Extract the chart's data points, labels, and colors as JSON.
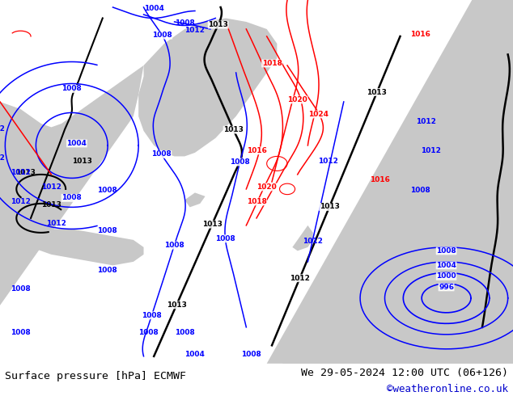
{
  "title_left": "Surface pressure [hPa] ECMWF",
  "title_right": "We 29-05-2024 12:00 UTC (06+126)",
  "copyright": "©weatheronline.co.uk",
  "sea_color": [
    200,
    200,
    200
  ],
  "land_color": [
    180,
    230,
    155
  ],
  "fig_bg": [
    255,
    255,
    255
  ],
  "figsize": [
    6.34,
    4.9
  ],
  "dpi": 100,
  "title_color": "#000000",
  "copyright_color": "#0000cc"
}
